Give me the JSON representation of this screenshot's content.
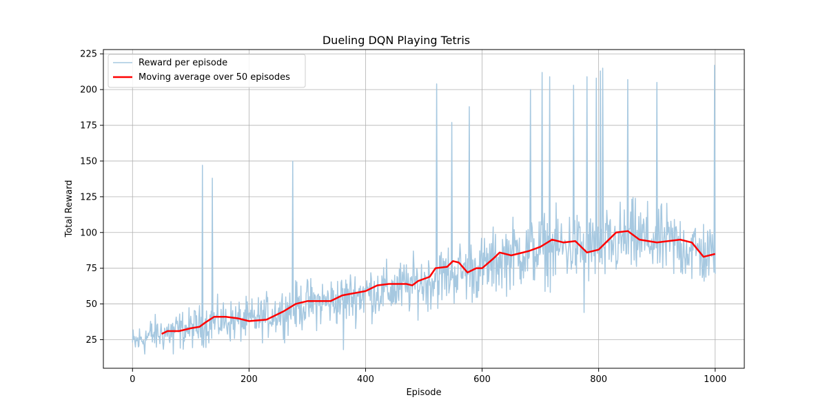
{
  "chart_data": {
    "type": "line",
    "title": "Dueling  DQN Playing Tetris",
    "xlabel": "Episode",
    "ylabel": "Total Reward",
    "xlim": [
      -50,
      1050
    ],
    "ylim": [
      5,
      228
    ],
    "xticks": [
      0,
      200,
      400,
      600,
      800,
      1000
    ],
    "yticks": [
      25,
      50,
      75,
      100,
      125,
      150,
      175,
      200,
      225
    ],
    "grid": true,
    "legend_position": "top-left",
    "colors": {
      "raw": "#a6c8e0",
      "avg": "#ff0000"
    },
    "series": [
      {
        "name": "Reward per episode",
        "style": "thin-light-blue",
        "anchors_x": [
          0,
          30,
          60,
          100,
          150,
          200,
          250,
          300,
          350,
          400,
          450,
          500,
          550,
          600,
          650,
          700,
          750,
          800,
          850,
          900,
          950,
          1000
        ],
        "anchors_y": [
          22,
          28,
          30,
          33,
          38,
          38,
          44,
          50,
          52,
          58,
          60,
          65,
          72,
          75,
          85,
          88,
          90,
          88,
          96,
          94,
          90,
          82
        ],
        "spikes": [
          {
            "x": 120,
            "y": 147
          },
          {
            "x": 137,
            "y": 138
          },
          {
            "x": 275,
            "y": 150
          },
          {
            "x": 522,
            "y": 204
          },
          {
            "x": 548,
            "y": 177
          },
          {
            "x": 578,
            "y": 188
          },
          {
            "x": 683,
            "y": 200
          },
          {
            "x": 703,
            "y": 212
          },
          {
            "x": 716,
            "y": 209
          },
          {
            "x": 757,
            "y": 203
          },
          {
            "x": 780,
            "y": 209
          },
          {
            "x": 796,
            "y": 208
          },
          {
            "x": 803,
            "y": 213
          },
          {
            "x": 807,
            "y": 215
          },
          {
            "x": 850,
            "y": 207
          },
          {
            "x": 900,
            "y": 205
          },
          {
            "x": 999,
            "y": 217
          }
        ],
        "dips": [
          {
            "x": 70,
            "y": 15
          },
          {
            "x": 362,
            "y": 18
          },
          {
            "x": 775,
            "y": 44
          }
        ]
      },
      {
        "name": "Moving average over 50 episodes",
        "style": "thick-red",
        "x": [
          50,
          60,
          80,
          100,
          115,
          125,
          140,
          160,
          180,
          200,
          230,
          260,
          280,
          300,
          340,
          360,
          400,
          420,
          440,
          470,
          480,
          490,
          510,
          520,
          540,
          550,
          560,
          575,
          590,
          600,
          620,
          630,
          650,
          680,
          700,
          720,
          740,
          760,
          780,
          800,
          830,
          850,
          870,
          900,
          940,
          960,
          980,
          1000
        ],
        "y": [
          29,
          31,
          31,
          33,
          34,
          37,
          41,
          41,
          40,
          38,
          39,
          45,
          50,
          52,
          52,
          56,
          59,
          63,
          64,
          64,
          63,
          66,
          69,
          75,
          76,
          80,
          79,
          72,
          75,
          75,
          82,
          86,
          84,
          87,
          90,
          95,
          93,
          94,
          86,
          88,
          100,
          101,
          95,
          93,
          95,
          93,
          83,
          85
        ]
      }
    ]
  }
}
